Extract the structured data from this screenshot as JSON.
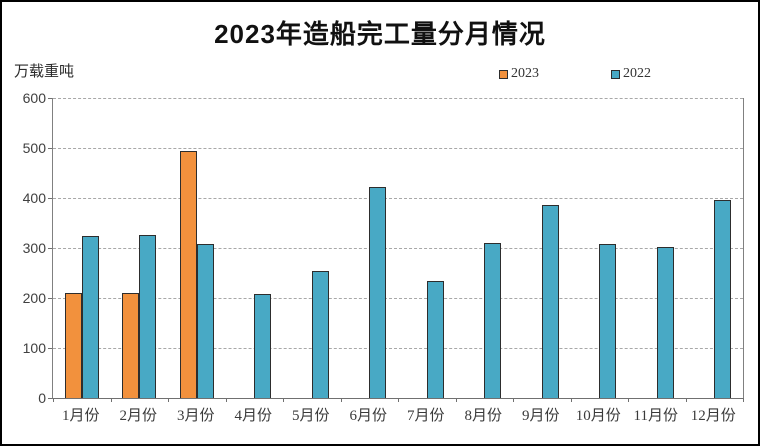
{
  "chart_data": {
    "type": "bar",
    "title": "2023年造船完工量分月情况",
    "ylabel": "万载重吨",
    "categories": [
      "1月份",
      "2月份",
      "3月份",
      "4月份",
      "5月份",
      "6月份",
      "7月份",
      "8月份",
      "9月份",
      "10月份",
      "11月份",
      "12月份"
    ],
    "series": [
      {
        "name": "2023",
        "color": "#F2913D",
        "values": [
          211,
          211,
          495,
          null,
          null,
          null,
          null,
          null,
          null,
          null,
          null,
          null
        ]
      },
      {
        "name": "2022",
        "color": "#48A9C5",
        "values": [
          325,
          327,
          308,
          209,
          255,
          422,
          235,
          310,
          386,
          308,
          303,
          397
        ]
      }
    ],
    "ylim": [
      0,
      600
    ],
    "ytick_step": 100,
    "yticks": [
      0,
      100,
      200,
      300,
      400,
      500,
      600
    ],
    "grid": "horizontal-dashed",
    "legend_position": "top-right"
  },
  "colors": {
    "series_2023": "#F2913D",
    "series_2022": "#48A9C5",
    "bar_border": "#2d2d2d",
    "axis_line": "#808080",
    "gridline": "#a8a8a8",
    "text": "#333333",
    "background": "#ffffff",
    "outer_border": "#000000"
  }
}
